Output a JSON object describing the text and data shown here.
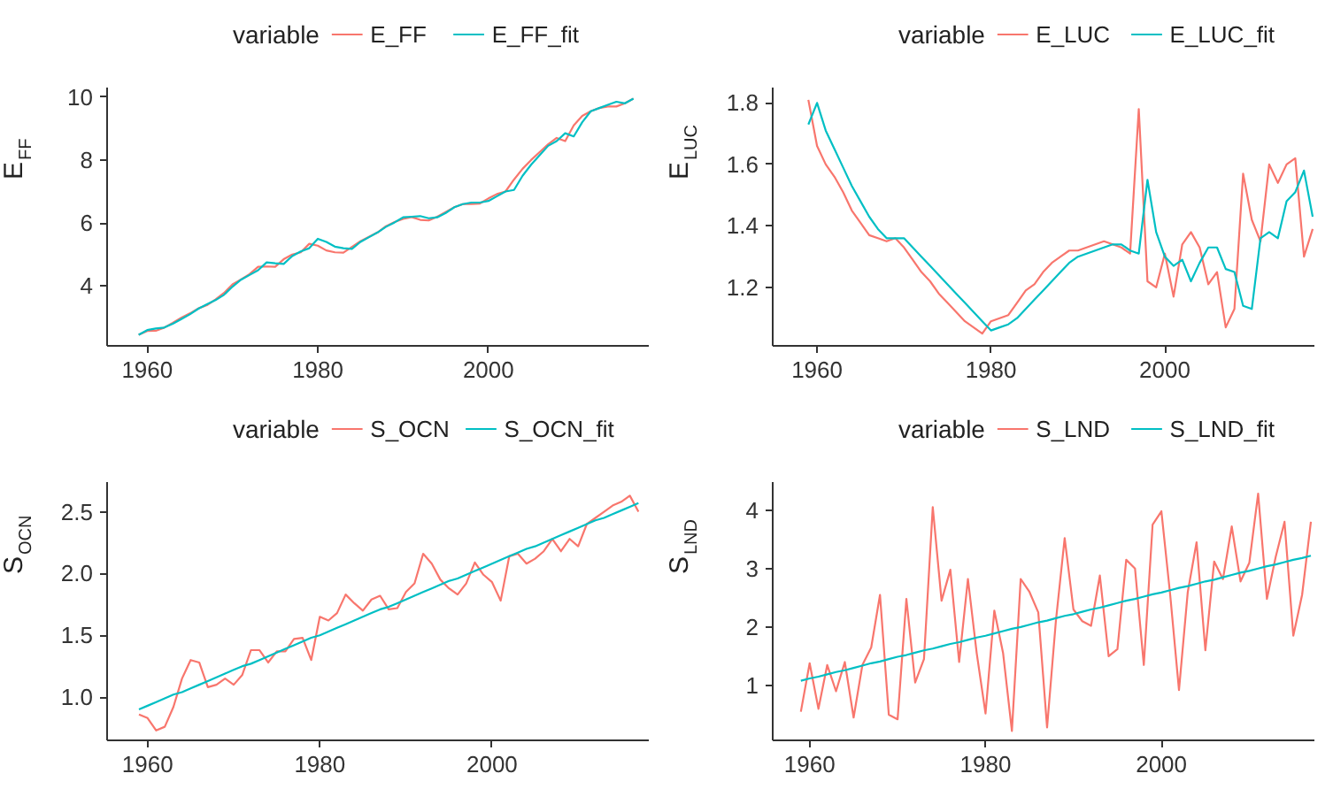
{
  "chart_data": [
    {
      "type": "line",
      "ylabel": "E$_{FF}$",
      "legend_title": "variable",
      "legend": "top",
      "grid": false,
      "xlim": [
        1955.3,
        2018.8
      ],
      "ylim": [
        2.1,
        10.3
      ],
      "xticks": [
        1960,
        1980,
        2000
      ],
      "yticks": [
        4,
        6,
        8,
        10
      ],
      "x": [
        1959,
        1960,
        1961,
        1962,
        1963,
        1964,
        1965,
        1966,
        1967,
        1968,
        1969,
        1970,
        1971,
        1972,
        1973,
        1974,
        1975,
        1976,
        1977,
        1978,
        1979,
        1980,
        1981,
        1982,
        1983,
        1984,
        1985,
        1986,
        1987,
        1988,
        1989,
        1990,
        1991,
        1992,
        1993,
        1994,
        1995,
        1996,
        1997,
        1998,
        1999,
        2000,
        2001,
        2002,
        2003,
        2004,
        2005,
        2006,
        2007,
        2008,
        2009,
        2010,
        2011,
        2012,
        2013,
        2014,
        2015,
        2016,
        2017
      ],
      "series": [
        {
          "name": "E_FF",
          "color": "#f8766d",
          "values": [
            2.45,
            2.57,
            2.58,
            2.68,
            2.83,
            2.99,
            3.13,
            3.29,
            3.39,
            3.57,
            3.78,
            4.05,
            4.21,
            4.38,
            4.61,
            4.62,
            4.61,
            4.85,
            5.0,
            5.07,
            5.34,
            5.28,
            5.13,
            5.07,
            5.06,
            5.24,
            5.42,
            5.56,
            5.7,
            5.9,
            6.03,
            6.13,
            6.19,
            6.1,
            6.08,
            6.2,
            6.35,
            6.5,
            6.6,
            6.6,
            6.62,
            6.78,
            6.92,
            7.0,
            7.38,
            7.72,
            8.0,
            8.25,
            8.5,
            8.7,
            8.6,
            9.1,
            9.4,
            9.55,
            9.65,
            9.7,
            9.7,
            9.8,
            9.95
          ]
        },
        {
          "name": "E_FF_fit",
          "color": "#00bfc4",
          "values": [
            2.45,
            2.6,
            2.65,
            2.68,
            2.8,
            2.95,
            3.1,
            3.28,
            3.42,
            3.55,
            3.72,
            3.98,
            4.2,
            4.35,
            4.5,
            4.75,
            4.72,
            4.7,
            4.95,
            5.1,
            5.2,
            5.5,
            5.4,
            5.25,
            5.2,
            5.18,
            5.4,
            5.55,
            5.7,
            5.88,
            6.02,
            6.18,
            6.2,
            6.22,
            6.15,
            6.18,
            6.32,
            6.5,
            6.6,
            6.65,
            6.65,
            6.7,
            6.85,
            7.0,
            7.05,
            7.5,
            7.85,
            8.15,
            8.45,
            8.6,
            8.85,
            8.75,
            9.2,
            9.55,
            9.65,
            9.75,
            9.85,
            9.8,
            9.95
          ]
        }
      ]
    },
    {
      "type": "line",
      "ylabel": "E$_{LUC}$",
      "legend_title": "variable",
      "legend": "top",
      "grid": false,
      "xlim": [
        1954.9,
        2017.2
      ],
      "ylim": [
        1.01,
        1.85
      ],
      "xticks": [
        1960,
        1980,
        2000
      ],
      "yticks": [
        1.2,
        1.4,
        1.6,
        1.8
      ],
      "x": [
        1959,
        1960,
        1961,
        1962,
        1963,
        1964,
        1965,
        1966,
        1967,
        1968,
        1969,
        1970,
        1971,
        1972,
        1973,
        1974,
        1975,
        1976,
        1977,
        1978,
        1979,
        1980,
        1981,
        1982,
        1983,
        1984,
        1985,
        1986,
        1987,
        1988,
        1989,
        1990,
        1991,
        1992,
        1993,
        1994,
        1995,
        1996,
        1997,
        1998,
        1999,
        2000,
        2001,
        2002,
        2003,
        2004,
        2005,
        2006,
        2007,
        2008,
        2009,
        2010,
        2011,
        2012,
        2013,
        2014,
        2015,
        2016,
        2017
      ],
      "series": [
        {
          "name": "E_LUC",
          "color": "#f8766d",
          "values": [
            1.81,
            1.66,
            1.6,
            1.56,
            1.51,
            1.45,
            1.41,
            1.37,
            1.36,
            1.35,
            1.36,
            1.33,
            1.29,
            1.25,
            1.22,
            1.18,
            1.15,
            1.12,
            1.09,
            1.07,
            1.05,
            1.09,
            1.1,
            1.11,
            1.15,
            1.19,
            1.21,
            1.25,
            1.28,
            1.3,
            1.32,
            1.32,
            1.33,
            1.34,
            1.35,
            1.34,
            1.33,
            1.31,
            1.78,
            1.22,
            1.2,
            1.31,
            1.17,
            1.34,
            1.38,
            1.33,
            1.21,
            1.25,
            1.07,
            1.13,
            1.57,
            1.42,
            1.35,
            1.6,
            1.54,
            1.6,
            1.62,
            1.3,
            1.39
          ]
        },
        {
          "name": "E_LUC_fit",
          "color": "#00bfc4",
          "values": [
            1.73,
            1.8,
            1.71,
            1.65,
            1.59,
            1.53,
            1.48,
            1.43,
            1.39,
            1.36,
            1.36,
            1.36,
            1.33,
            1.3,
            1.27,
            1.24,
            1.21,
            1.18,
            1.15,
            1.12,
            1.09,
            1.06,
            1.07,
            1.08,
            1.1,
            1.13,
            1.16,
            1.19,
            1.22,
            1.25,
            1.28,
            1.3,
            1.31,
            1.32,
            1.33,
            1.34,
            1.34,
            1.32,
            1.31,
            1.55,
            1.38,
            1.3,
            1.27,
            1.29,
            1.22,
            1.28,
            1.33,
            1.33,
            1.26,
            1.25,
            1.14,
            1.13,
            1.36,
            1.38,
            1.36,
            1.48,
            1.51,
            1.58,
            1.43
          ]
        }
      ]
    },
    {
      "type": "line",
      "ylabel": "S$_{OCN}$",
      "legend_title": "variable",
      "legend": "top",
      "grid": false,
      "xlim": [
        1955.3,
        2018.2
      ],
      "ylim": [
        0.65,
        2.74
      ],
      "xticks": [
        1960,
        1980,
        2000
      ],
      "yticks": [
        {
          "value": 1.0,
          "label": "1.0"
        },
        1.5,
        {
          "value": 2.0,
          "label": "2.0"
        },
        2.5
      ],
      "x": [
        1959,
        1960,
        1961,
        1962,
        1963,
        1964,
        1965,
        1966,
        1967,
        1968,
        1969,
        1970,
        1971,
        1972,
        1973,
        1974,
        1975,
        1976,
        1977,
        1978,
        1979,
        1980,
        1981,
        1982,
        1983,
        1984,
        1985,
        1986,
        1987,
        1988,
        1989,
        1990,
        1991,
        1992,
        1993,
        1994,
        1995,
        1996,
        1997,
        1998,
        1999,
        2000,
        2001,
        2002,
        2003,
        2004,
        2005,
        2006,
        2007,
        2008,
        2009,
        2010,
        2011,
        2012,
        2013,
        2014,
        2015,
        2016,
        2017
      ],
      "series": [
        {
          "name": "S_OCN",
          "color": "#f8766d",
          "values": [
            0.86,
            0.83,
            0.73,
            0.76,
            0.92,
            1.15,
            1.3,
            1.28,
            1.08,
            1.1,
            1.15,
            1.1,
            1.18,
            1.38,
            1.38,
            1.28,
            1.37,
            1.37,
            1.47,
            1.48,
            1.3,
            1.65,
            1.62,
            1.68,
            1.83,
            1.76,
            1.7,
            1.79,
            1.82,
            1.71,
            1.72,
            1.85,
            1.92,
            2.16,
            2.08,
            1.95,
            1.88,
            1.83,
            1.92,
            2.09,
            1.99,
            1.93,
            1.78,
            2.14,
            2.16,
            2.08,
            2.12,
            2.18,
            2.28,
            2.18,
            2.28,
            2.22,
            2.4,
            2.45,
            2.5,
            2.55,
            2.58,
            2.63,
            2.5
          ]
        },
        {
          "name": "S_OCN_fit",
          "color": "#00bfc4",
          "values": [
            0.9,
            0.93,
            0.96,
            0.99,
            1.02,
            1.04,
            1.07,
            1.1,
            1.13,
            1.16,
            1.19,
            1.22,
            1.25,
            1.27,
            1.3,
            1.33,
            1.36,
            1.39,
            1.42,
            1.45,
            1.48,
            1.5,
            1.53,
            1.56,
            1.59,
            1.62,
            1.65,
            1.68,
            1.71,
            1.73,
            1.76,
            1.79,
            1.82,
            1.85,
            1.88,
            1.91,
            1.94,
            1.96,
            1.99,
            2.02,
            2.05,
            2.08,
            2.11,
            2.14,
            2.17,
            2.2,
            2.22,
            2.25,
            2.28,
            2.31,
            2.34,
            2.37,
            2.4,
            2.43,
            2.45,
            2.48,
            2.51,
            2.54,
            2.57
          ]
        }
      ]
    },
    {
      "type": "line",
      "ylabel": "S$_{LND}$",
      "legend_title": "variable",
      "legend": "top",
      "grid": false,
      "xlim": [
        1955.8,
        2017.4
      ],
      "ylim": [
        0.06,
        4.48
      ],
      "xticks": [
        1960,
        1980,
        2000
      ],
      "yticks": [
        1,
        2,
        3,
        4
      ],
      "x": [
        1959,
        1960,
        1961,
        1962,
        1963,
        1964,
        1965,
        1966,
        1967,
        1968,
        1969,
        1970,
        1971,
        1972,
        1973,
        1974,
        1975,
        1976,
        1977,
        1978,
        1979,
        1980,
        1981,
        1982,
        1983,
        1984,
        1985,
        1986,
        1987,
        1988,
        1989,
        1990,
        1991,
        1992,
        1993,
        1994,
        1995,
        1996,
        1997,
        1998,
        1999,
        2000,
        2001,
        2002,
        2003,
        2004,
        2005,
        2006,
        2007,
        2008,
        2009,
        2010,
        2011,
        2012,
        2013,
        2014,
        2015,
        2016,
        2017
      ],
      "series": [
        {
          "name": "S_LND",
          "color": "#f8766d",
          "values": [
            0.55,
            1.38,
            0.6,
            1.35,
            0.9,
            1.4,
            0.45,
            1.35,
            1.65,
            2.55,
            0.5,
            0.42,
            2.48,
            1.05,
            1.45,
            4.05,
            2.45,
            2.98,
            1.4,
            2.82,
            1.55,
            0.52,
            2.28,
            1.55,
            0.22,
            2.82,
            2.6,
            2.25,
            0.28,
            2.1,
            3.52,
            2.3,
            2.1,
            2.02,
            2.88,
            1.5,
            1.62,
            3.15,
            3.0,
            1.35,
            3.75,
            3.98,
            2.55,
            0.92,
            2.6,
            3.45,
            1.6,
            3.12,
            2.82,
            3.72,
            2.78,
            3.1,
            4.28,
            2.48,
            3.2,
            3.8,
            1.85,
            2.55,
            3.8
          ]
        },
        {
          "name": "S_LND_fit",
          "color": "#00bfc4",
          "values": [
            1.08,
            1.12,
            1.15,
            1.19,
            1.23,
            1.26,
            1.3,
            1.34,
            1.38,
            1.41,
            1.45,
            1.49,
            1.52,
            1.56,
            1.6,
            1.63,
            1.67,
            1.71,
            1.74,
            1.78,
            1.82,
            1.85,
            1.89,
            1.93,
            1.97,
            2.0,
            2.04,
            2.08,
            2.11,
            2.15,
            2.19,
            2.22,
            2.26,
            2.3,
            2.33,
            2.37,
            2.41,
            2.45,
            2.48,
            2.52,
            2.56,
            2.59,
            2.63,
            2.67,
            2.7,
            2.74,
            2.78,
            2.81,
            2.85,
            2.89,
            2.93,
            2.96,
            3.0,
            3.04,
            3.07,
            3.11,
            3.15,
            3.18,
            3.22
          ]
        }
      ]
    }
  ]
}
